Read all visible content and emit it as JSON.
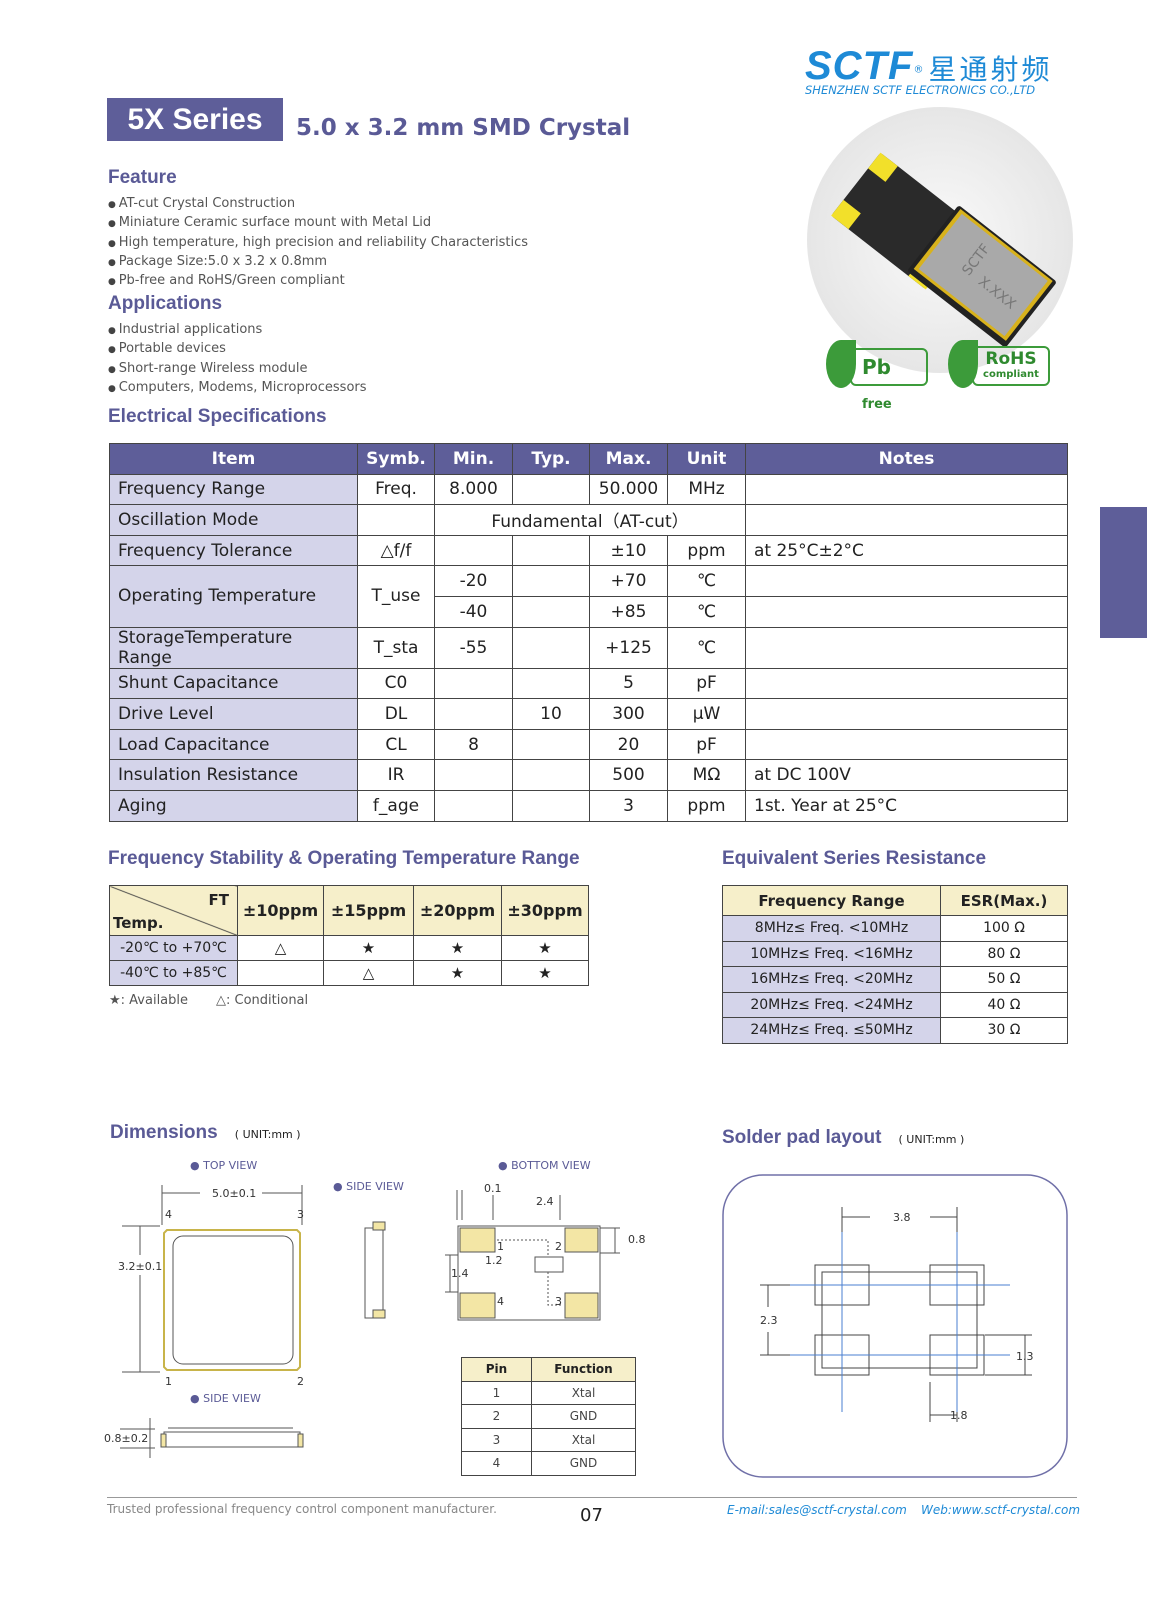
{
  "logo": {
    "brand": "SCTF",
    "chinese": "星通射频",
    "company": "SHENZHEN SCTF ELECTRONICS CO.,LTD"
  },
  "header": {
    "series": "5X Series",
    "subtitle": "5.0 x 3.2 mm SMD Crystal"
  },
  "feature": {
    "title": "Feature",
    "items": [
      "AT-cut Crystal Construction",
      "Miniature Ceramic surface mount with Metal Lid",
      "High temperature, high precision and reliability Characteristics",
      "Package Size:5.0 x 3.2 x 0.8mm",
      "Pb-free and RoHS/Green compliant"
    ]
  },
  "applications": {
    "title": "Applications",
    "items": [
      "Industrial applications",
      "Portable devices",
      "Short-range Wireless module",
      "Computers, Modems, Microprocessors"
    ]
  },
  "product_image": {
    "marking_1": "SCTF",
    "marking_2": "X.XXX"
  },
  "badges": {
    "pb": "Pb",
    "pb_sub": "free",
    "rohs": "RoHS",
    "rohs_sub": "compliant"
  },
  "electrical": {
    "title": "Electrical Specifications",
    "headers": [
      "Item",
      "Symb.",
      "Min.",
      "Typ.",
      "Max.",
      "Unit",
      "Notes"
    ],
    "rows": [
      [
        "Frequency Range",
        "Freq.",
        "8.000",
        "",
        "50.000",
        "MHz",
        ""
      ],
      [
        "Oscillation Mode",
        "",
        "Fundamental（AT-cut）"
      ],
      [
        "Frequency Tolerance",
        "△f/f",
        "",
        "",
        "±10",
        "ppm",
        "at 25°C±2°C"
      ],
      [
        "Operating Temperature",
        "T_use",
        "-20",
        "",
        "+70",
        "℃",
        ""
      ],
      [
        "",
        "",
        "-40",
        "",
        "+85",
        "℃",
        ""
      ],
      [
        "StorageTemperature Range",
        "T_sta",
        "-55",
        "",
        "+125",
        "℃",
        ""
      ],
      [
        "Shunt Capacitance",
        "C0",
        "",
        "",
        "5",
        "pF",
        ""
      ],
      [
        "Drive Level",
        "DL",
        "",
        "10",
        "300",
        "μW",
        ""
      ],
      [
        "Load Capacitance",
        "CL",
        "8",
        "",
        "20",
        "pF",
        ""
      ],
      [
        "Insulation Resistance",
        "IR",
        "",
        "",
        "500",
        "MΩ",
        "at DC 100V"
      ],
      [
        "Aging",
        "f_age",
        "",
        "",
        "3",
        "ppm",
        "1st. Year at 25°C"
      ]
    ]
  },
  "stability": {
    "title": "Frequency Stability & Operating Temperature Range",
    "corner_top": "FT",
    "corner_bottom": "Temp.",
    "columns": [
      "±10ppm",
      "±15ppm",
      "±20ppm",
      "±30ppm"
    ],
    "rows": [
      {
        "temp": "-20℃ to +70℃",
        "cells": [
          "△",
          "★",
          "★",
          "★"
        ]
      },
      {
        "temp": "-40℃ to +85℃",
        "cells": [
          "",
          "△",
          "★",
          "★"
        ]
      }
    ],
    "legend_available": "★: Available",
    "legend_conditional": "△: Conditional"
  },
  "esr": {
    "title": "Equivalent Series Resistance",
    "headers": [
      "Frequency Range",
      "ESR(Max.)"
    ],
    "rows": [
      [
        "8MHz≤ Freq. <10MHz",
        "100 Ω"
      ],
      [
        "10MHz≤ Freq. <16MHz",
        "80 Ω"
      ],
      [
        "16MHz≤ Freq. <20MHz",
        "50 Ω"
      ],
      [
        "20MHz≤ Freq. <24MHz",
        "40 Ω"
      ],
      [
        "24MHz≤ Freq. ≤50MHz",
        "30 Ω"
      ]
    ]
  },
  "dimensions": {
    "title": "Dimensions",
    "unit": "( UNIT:mm )",
    "top_view": "● TOP VIEW",
    "side_view": "● SIDE VIEW",
    "bottom_view": "● BOTTOM VIEW",
    "side_view_2": "● SIDE VIEW",
    "length": "5.0±0.1",
    "width": "3.2±0.1",
    "height": "0.8±0.2",
    "b_01": "0.1",
    "b_24": "2.4",
    "b_08": "0.8",
    "b_12": "1.2",
    "b_14": "1.4",
    "pins": [
      "1",
      "2",
      "3",
      "4"
    ]
  },
  "pin_table": {
    "headers": [
      "Pin",
      "Function"
    ],
    "rows": [
      [
        "1",
        "Xtal"
      ],
      [
        "2",
        "GND"
      ],
      [
        "3",
        "Xtal"
      ],
      [
        "4",
        "GND"
      ]
    ]
  },
  "solder": {
    "title": "Solder pad layout",
    "unit": "( UNIT:mm )",
    "d38": "3.8",
    "d23": "2.3",
    "d13": "1.3",
    "d18": "1.8"
  },
  "footer": {
    "tagline": "Trusted professional frequency control component manufacturer.",
    "page": "07",
    "email": "E-mail:sales@sctf-crystal.com",
    "web": "Web:www.sctf-crystal.com"
  },
  "colors": {
    "accent": "#5e5e99",
    "logo": "#1e8ad6",
    "lavender": "#d4d4ea",
    "cream": "#f6efca"
  }
}
